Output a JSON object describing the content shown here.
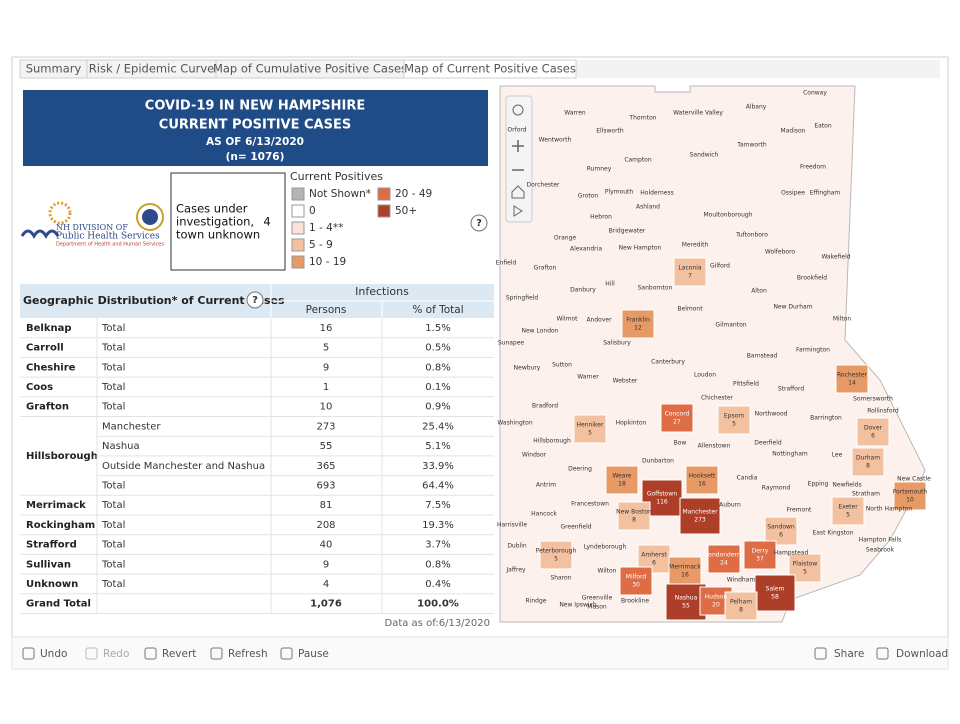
{
  "tabs": [
    "Summary",
    "Risk / Epidemic Curve",
    "Map of Cumulative Positive Cases",
    "Map of Current Positive Cases"
  ],
  "header": {
    "lines": [
      "COVID-19 IN NEW HAMPSHIRE",
      "CURRENT POSITIVE CASES",
      "AS OF 6/13/2020",
      "(n= 1076)"
    ]
  },
  "logo": {
    "lines": [
      "NH DIVISION OF",
      "Public Health Services",
      "Department of Health and Human Services"
    ]
  },
  "unknown_box": {
    "label": [
      "Cases under",
      "investigation,",
      "town unknown"
    ],
    "value": "4"
  },
  "legend": {
    "title": "Current Positives",
    "help": "?",
    "items": [
      {
        "label": "Not Shown*",
        "color": "#b4b4b4"
      },
      {
        "label": "0",
        "color": "#ffffff"
      },
      {
        "label": "1 - 4**",
        "color": "#fbe3d6"
      },
      {
        "label": "5 - 9",
        "color": "#f3c19f"
      },
      {
        "label": "10 - 19",
        "color": "#e79a65"
      },
      {
        "label": "20 - 49",
        "color": "#de6c45"
      },
      {
        "label": "50+",
        "color": "#ad3f28"
      }
    ]
  },
  "table": {
    "title": "Geographic Distribution* of Current Cases",
    "help": "?",
    "group_header": "Infections",
    "columns": [
      "Persons",
      "% of Total"
    ],
    "groups": [
      {
        "region": "Belknap",
        "rows": [
          {
            "label": "Total",
            "persons": "16",
            "pct": "1.5%"
          }
        ]
      },
      {
        "region": "Carroll",
        "rows": [
          {
            "label": "Total",
            "persons": "5",
            "pct": "0.5%"
          }
        ]
      },
      {
        "region": "Cheshire",
        "rows": [
          {
            "label": "Total",
            "persons": "9",
            "pct": "0.8%"
          }
        ]
      },
      {
        "region": "Coos",
        "rows": [
          {
            "label": "Total",
            "persons": "1",
            "pct": "0.1%"
          }
        ]
      },
      {
        "region": "Grafton",
        "rows": [
          {
            "label": "Total",
            "persons": "10",
            "pct": "0.9%"
          }
        ]
      },
      {
        "region": "Hillsborough",
        "rows": [
          {
            "label": "Manchester",
            "persons": "273",
            "pct": "25.4%"
          },
          {
            "label": "Nashua",
            "persons": "55",
            "pct": "5.1%"
          },
          {
            "label": "Outside Manchester and Nashua",
            "persons": "365",
            "pct": "33.9%"
          },
          {
            "label": "Total",
            "persons": "693",
            "pct": "64.4%"
          }
        ]
      },
      {
        "region": "Merrimack",
        "rows": [
          {
            "label": "Total",
            "persons": "81",
            "pct": "7.5%"
          }
        ]
      },
      {
        "region": "Rockingham",
        "rows": [
          {
            "label": "Total",
            "persons": "208",
            "pct": "19.3%"
          }
        ]
      },
      {
        "region": "Strafford",
        "rows": [
          {
            "label": "Total",
            "persons": "40",
            "pct": "3.7%"
          }
        ]
      },
      {
        "region": "Sullivan",
        "rows": [
          {
            "label": "Total",
            "persons": "9",
            "pct": "0.8%"
          }
        ]
      },
      {
        "region": "Unknown",
        "rows": [
          {
            "label": "Total",
            "persons": "4",
            "pct": "0.4%"
          }
        ]
      },
      {
        "region": "Grand Total",
        "rows": [
          {
            "persons": "1,076",
            "pct": "100.0%"
          }
        ]
      }
    ],
    "note": "Data as of:6/13/2020"
  },
  "map": {
    "towns": [
      {
        "name": "Warren"
      },
      {
        "name": "Thornton"
      },
      {
        "name": "Waterville Valley"
      },
      {
        "name": "Albany"
      },
      {
        "name": "Conway"
      },
      {
        "name": "Orford"
      },
      {
        "name": "Ellsworth"
      },
      {
        "name": "Eaton"
      },
      {
        "name": "Madison"
      },
      {
        "name": "Wentworth"
      },
      {
        "name": "Tamworth"
      },
      {
        "name": "Campton"
      },
      {
        "name": "Sandwich"
      },
      {
        "name": "Rumney"
      },
      {
        "name": "Freedom"
      },
      {
        "name": "Dorchester"
      },
      {
        "name": "Groton"
      },
      {
        "name": "Plymouth"
      },
      {
        "name": "Holderness"
      },
      {
        "name": "Ossipee"
      },
      {
        "name": "Effingham"
      },
      {
        "name": "Ashland"
      },
      {
        "name": "Hebron"
      },
      {
        "name": "Moultonborough"
      },
      {
        "name": "Bridgewater"
      },
      {
        "name": "Tuftonboro"
      },
      {
        "name": "Orange"
      },
      {
        "name": "Alexandria"
      },
      {
        "name": "New Hampton"
      },
      {
        "name": "Meredith"
      },
      {
        "name": "Wolfeboro"
      },
      {
        "name": "Enfield"
      },
      {
        "name": "Grafton"
      },
      {
        "name": "Laconia",
        "count": 7,
        "color": "#f3c19f"
      },
      {
        "name": "Gilford"
      },
      {
        "name": "Wakefield"
      },
      {
        "name": "Brookfield"
      },
      {
        "name": "Danbury"
      },
      {
        "name": "Hill"
      },
      {
        "name": "Sanbornton"
      },
      {
        "name": "Alton"
      },
      {
        "name": "Springfield"
      },
      {
        "name": "Wilmot"
      },
      {
        "name": "Andover"
      },
      {
        "name": "Franklin",
        "count": 12,
        "color": "#e79a65"
      },
      {
        "name": "Belmont"
      },
      {
        "name": "New Durham"
      },
      {
        "name": "New London"
      },
      {
        "name": "Gilmanton"
      },
      {
        "name": "Milton"
      },
      {
        "name": "Sunapee"
      },
      {
        "name": "Salisbury"
      },
      {
        "name": "Canterbury"
      },
      {
        "name": "Barnstead"
      },
      {
        "name": "Farmington"
      },
      {
        "name": "Newbury"
      },
      {
        "name": "Sutton"
      },
      {
        "name": "Warner"
      },
      {
        "name": "Webster"
      },
      {
        "name": "Loudon"
      },
      {
        "name": "Pittsfield"
      },
      {
        "name": "Strafford"
      },
      {
        "name": "Rochester",
        "count": 14,
        "color": "#e79a65"
      },
      {
        "name": "Bradford"
      },
      {
        "name": "Chichester"
      },
      {
        "name": "Somersworth"
      },
      {
        "name": "Henniker",
        "count": 5,
        "color": "#f3c19f"
      },
      {
        "name": "Hopkinton"
      },
      {
        "name": "Concord",
        "count": 27,
        "color": "#de6c45"
      },
      {
        "name": "Epsom",
        "count": 5,
        "color": "#f3c19f"
      },
      {
        "name": "Northwood"
      },
      {
        "name": "Barrington"
      },
      {
        "name": "Rollinsford"
      },
      {
        "name": "Dover",
        "count": 6,
        "color": "#f3c19f"
      },
      {
        "name": "Washington"
      },
      {
        "name": "Hillsborough"
      },
      {
        "name": "Bow"
      },
      {
        "name": "Allenstown"
      },
      {
        "name": "Deerfield"
      },
      {
        "name": "Nottingham"
      },
      {
        "name": "Windsor"
      },
      {
        "name": "Lee"
      },
      {
        "name": "Durham",
        "count": 8,
        "color": "#f3c19f"
      },
      {
        "name": "Dunbarton"
      },
      {
        "name": "Weare",
        "count": 18,
        "color": "#e79a65"
      },
      {
        "name": "Candia"
      },
      {
        "name": "Deering"
      },
      {
        "name": "Hooksett",
        "count": 16,
        "color": "#e79a65"
      },
      {
        "name": "New Castle"
      },
      {
        "name": "Portsmouth",
        "count": 10,
        "color": "#e79a65"
      },
      {
        "name": "Antrim"
      },
      {
        "name": "Raymond"
      },
      {
        "name": "Epping"
      },
      {
        "name": "Newfields"
      },
      {
        "name": "Stratham"
      },
      {
        "name": "Goffstown",
        "count": 116,
        "color": "#ad3f28"
      },
      {
        "name": "Manchester",
        "count": 273,
        "color": "#ad3f28"
      },
      {
        "name": "Auburn"
      },
      {
        "name": "Francestown"
      },
      {
        "name": "New Boston",
        "count": 8,
        "color": "#f3c19f"
      },
      {
        "name": "Fremont"
      },
      {
        "name": "Exeter",
        "count": 5,
        "color": "#f3c19f"
      },
      {
        "name": "North Hampton"
      },
      {
        "name": "Hancock"
      },
      {
        "name": "Greenfield"
      },
      {
        "name": "Sandown",
        "count": 6,
        "color": "#f3c19f"
      },
      {
        "name": "East Kingston"
      },
      {
        "name": "Hampton Falls"
      },
      {
        "name": "Harrisville"
      },
      {
        "name": "Peterborough",
        "count": 5,
        "color": "#f3c19f"
      },
      {
        "name": "Lyndeborough"
      },
      {
        "name": "Amherst",
        "count": 6,
        "color": "#f3c19f"
      },
      {
        "name": "Merrimack",
        "count": 16,
        "color": "#e79a65"
      },
      {
        "name": "Londonderry",
        "count": 24,
        "color": "#de6c45"
      },
      {
        "name": "Derry",
        "count": 37,
        "color": "#de6c45"
      },
      {
        "name": "Hampstead"
      },
      {
        "name": "Plaistow",
        "count": 5,
        "color": "#f3c19f"
      },
      {
        "name": "Seabrook"
      },
      {
        "name": "Dublin"
      },
      {
        "name": "Wilton"
      },
      {
        "name": "Milford",
        "count": 30,
        "color": "#de6c45"
      },
      {
        "name": "Jaffrey"
      },
      {
        "name": "Sharon"
      },
      {
        "name": "Nashua",
        "count": 55,
        "color": "#ad3f28"
      },
      {
        "name": "Hudson",
        "count": 20,
        "color": "#de6c45"
      },
      {
        "name": "Windham"
      },
      {
        "name": "Salem",
        "count": 58,
        "color": "#ad3f28"
      },
      {
        "name": "Pelham",
        "count": 8,
        "color": "#f3c19f"
      },
      {
        "name": "Rindge"
      },
      {
        "name": "New Ipswich"
      },
      {
        "name": "Greenville"
      },
      {
        "name": "Mason"
      },
      {
        "name": "Brookline"
      }
    ]
  },
  "toolbar": {
    "left": [
      "Undo",
      "Redo",
      "Revert",
      "Refresh",
      "Pause"
    ],
    "right": [
      "Share",
      "Download"
    ]
  }
}
